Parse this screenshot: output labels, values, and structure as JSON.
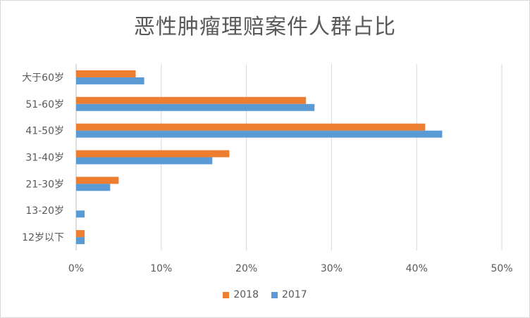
{
  "chart_data": {
    "type": "bar",
    "orientation": "horizontal",
    "title": "恶性肿瘤理赔案件人群占比",
    "categories": [
      "大于60岁",
      "51-60岁",
      "41-50岁",
      "31-40岁",
      "21-30岁",
      "13-20岁",
      "12岁以下"
    ],
    "series": [
      {
        "name": "2018",
        "color": "#ed7d31",
        "values": [
          7,
          27,
          41,
          18,
          5,
          0,
          1
        ]
      },
      {
        "name": "2017",
        "color": "#5b9bd5",
        "values": [
          8,
          28,
          43,
          16,
          4,
          1,
          1
        ]
      }
    ],
    "xlim": [
      0,
      50
    ],
    "xticks": [
      0,
      10,
      20,
      30,
      40,
      50
    ],
    "xtick_labels": [
      "0%",
      "10%",
      "20%",
      "30%",
      "40%",
      "50%"
    ],
    "xlabel": "",
    "ylabel": "",
    "grid": true,
    "legend_position": "bottom"
  }
}
